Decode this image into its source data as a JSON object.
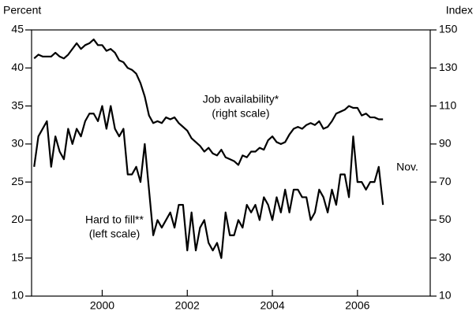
{
  "chart_data": {
    "type": "line",
    "y_label": "Percent",
    "y2_label": "Index",
    "x": [
      1998.4,
      1998.5,
      1998.6,
      1998.7,
      1998.8,
      1998.9,
      1999.0,
      1999.1,
      1999.2,
      1999.3,
      1999.4,
      1999.5,
      1999.6,
      1999.7,
      1999.8,
      1999.9,
      2000.0,
      2000.1,
      2000.2,
      2000.3,
      2000.4,
      2000.5,
      2000.6,
      2000.7,
      2000.8,
      2000.9,
      2001.0,
      2001.1,
      2001.2,
      2001.3,
      2001.4,
      2001.5,
      2001.6,
      2001.7,
      2001.8,
      2001.9,
      2002.0,
      2002.1,
      2002.2,
      2002.3,
      2002.4,
      2002.5,
      2002.6,
      2002.7,
      2002.8,
      2002.9,
      2003.0,
      2003.1,
      2003.2,
      2003.3,
      2003.4,
      2003.5,
      2003.6,
      2003.7,
      2003.8,
      2003.9,
      2004.0,
      2004.1,
      2004.2,
      2004.3,
      2004.4,
      2004.5,
      2004.6,
      2004.7,
      2004.8,
      2004.9,
      2005.0,
      2005.1,
      2005.2,
      2005.3,
      2005.4,
      2005.5,
      2005.6,
      2005.7,
      2005.8,
      2005.9,
      2006.0,
      2006.1,
      2006.2,
      2006.3,
      2006.4,
      2006.5,
      2006.6
    ],
    "series": [
      {
        "name": "Hard to fill**",
        "sublabel": "(left scale)",
        "color": "#000000",
        "axis": "y",
        "values": [
          27,
          31,
          32,
          33,
          27,
          31,
          29,
          28,
          32,
          30,
          32,
          31,
          33,
          34,
          34,
          33,
          35,
          32,
          35,
          32,
          31,
          32,
          26,
          26,
          27,
          25,
          30,
          24,
          18,
          20,
          19,
          20,
          21,
          19,
          22,
          22,
          16,
          21,
          16,
          19,
          20,
          17,
          16,
          17,
          15,
          21,
          18,
          18,
          20,
          19,
          22,
          21,
          22,
          20,
          23,
          22,
          20,
          23,
          21,
          24,
          21,
          24,
          24,
          23,
          23,
          20,
          21,
          24,
          23,
          21,
          24,
          22,
          26,
          26,
          23,
          31,
          25,
          25,
          24,
          25,
          25,
          27,
          22
        ]
      },
      {
        "name": "Job availability*",
        "sublabel": "(right scale)",
        "color": "#000000",
        "axis": "y2",
        "values": [
          135,
          137,
          136,
          136,
          136,
          138,
          136,
          135,
          137,
          140,
          143,
          140,
          142,
          143,
          145,
          142,
          142,
          139,
          140,
          138,
          134,
          133,
          130,
          129,
          127,
          122,
          115,
          105,
          101,
          102,
          101,
          104,
          103,
          104,
          101,
          99,
          97,
          93,
          91,
          89,
          86,
          88,
          85,
          84,
          87,
          83,
          82,
          81,
          79,
          84,
          83,
          86,
          86,
          88,
          87,
          92,
          94,
          91,
          90,
          91,
          95,
          98,
          99,
          98,
          100,
          101,
          100,
          102,
          98,
          99,
          102,
          106,
          107,
          108,
          110,
          109,
          109,
          105,
          106,
          104,
          104,
          103,
          103
        ]
      }
    ],
    "annotation": "Nov.",
    "xlim": [
      1998.34,
      2007.71
    ],
    "xticks": [
      2000,
      2002,
      2004,
      2006
    ],
    "ylim": [
      10,
      45
    ],
    "yticks": [
      10,
      15,
      20,
      25,
      30,
      35,
      40,
      45
    ],
    "y2lim": [
      10,
      150
    ],
    "y2ticks": [
      10,
      30,
      50,
      70,
      90,
      110,
      130,
      150
    ]
  }
}
